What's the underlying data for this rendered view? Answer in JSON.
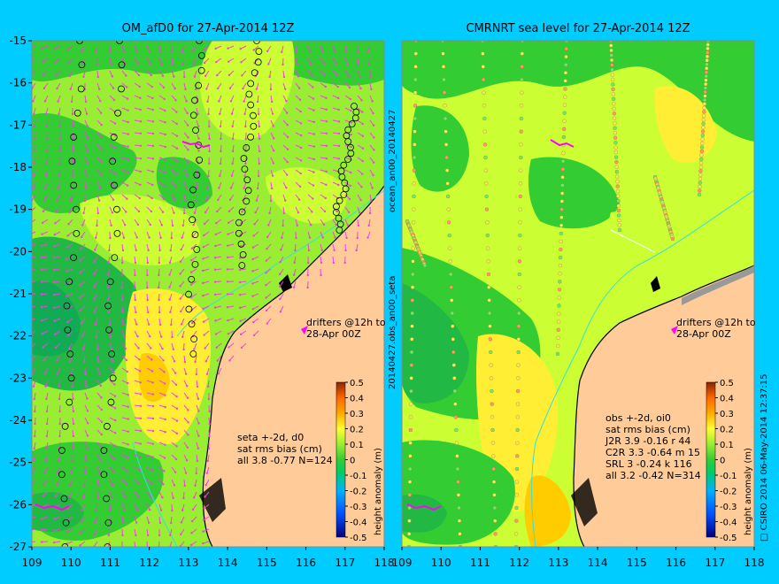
{
  "chart_data": [
    {
      "type": "heatmap",
      "title": "OM_afD0 for 27-Apr-2014 12Z",
      "xlim": [
        109,
        118
      ],
      "ylim": [
        -27,
        -15
      ],
      "x_ticks": [
        "109",
        "110",
        "111",
        "112",
        "113",
        "114",
        "115",
        "116",
        "117",
        "118"
      ],
      "y_ticks": [
        "-15",
        "-16",
        "-17",
        "-18",
        "-19",
        "-20",
        "-21",
        "-22",
        "-23",
        "-24",
        "-25",
        "-26",
        "-27"
      ],
      "drifters_label": "drifters @12h to\n28-Apr 00Z",
      "stats_text": [
        "seta +-2d, d0",
        "sat rms bias (cm)",
        "all 3.8 -0.77 N=124"
      ],
      "stats": {
        "all": {
          "rms": 3.8,
          "bias": -0.77,
          "N": 124
        }
      },
      "colorbar": {
        "label": "height anomaly (m)",
        "ticks": [
          "0.5",
          "0.4",
          "0.3",
          "0.2",
          "0.1",
          "0",
          "-0.1",
          "-0.2",
          "-0.3",
          "-0.4",
          "-0.5"
        ],
        "range": [
          -0.5,
          0.5
        ]
      }
    },
    {
      "type": "heatmap",
      "title": "CMRNRT sea level  for 27-Apr-2014 12Z",
      "xlim": [
        109,
        118
      ],
      "ylim": [
        -27,
        -15
      ],
      "x_ticks": [
        "109",
        "110",
        "111",
        "112",
        "113",
        "114",
        "115",
        "116",
        "117",
        "118"
      ],
      "drifters_label": "drifters @12h to\n28-Apr 00Z",
      "stats_text": [
        "obs +-2d, oi0",
        "sat rms bias (cm)",
        "J2R   3.9 -0.16 r 44",
        "C2R   3.3 -0.64 m 15",
        "SRL    3  -0.24 k 116",
        "all   3.2 -0.42 N=314"
      ],
      "stats": {
        "J2R": {
          "rms": 3.9,
          "bias": -0.16,
          "N": 44
        },
        "C2R": {
          "rms": 3.3,
          "bias": -0.64,
          "N": 15
        },
        "SRL": {
          "rms": 3,
          "bias": -0.24,
          "N": 116
        },
        "all": {
          "rms": 3.2,
          "bias": -0.42,
          "N": 314
        }
      },
      "colorbar": {
        "label": "height anomaly (m)",
        "ticks": [
          "0.5",
          "0.4",
          "0.3",
          "0.2",
          "0.1",
          "0",
          "-0.1",
          "-0.2",
          "-0.3",
          "-0.4",
          "-0.5"
        ],
        "range": [
          -0.5,
          0.5
        ]
      }
    }
  ],
  "middle_label": "20140427.obs_an00_seta",
  "middle_label_top": "ocean_an00_20140427",
  "right_label": "□ CSIRO 2014   06-May-2014 12:37:15",
  "colors": {
    "background": "#00ccff",
    "land": "#ffcc99",
    "green": "#33cc33",
    "light_green": "#99ee33",
    "yellow": "#ccff33",
    "orange": "#ffcc00",
    "arrow": "#ff33cc",
    "drifter": "#ff00ff"
  }
}
